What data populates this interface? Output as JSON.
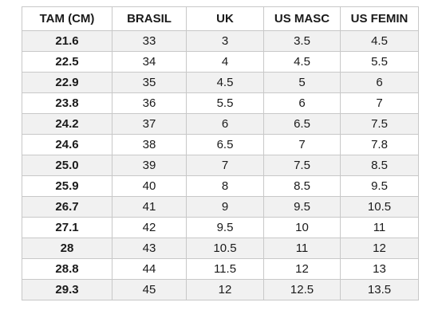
{
  "table": {
    "headers": [
      "TAM (CM)",
      "BRASIL",
      "UK",
      "US MASC",
      "US FEMIN"
    ],
    "rows": [
      [
        "21.6",
        "33",
        "3",
        "3.5",
        "4.5"
      ],
      [
        "22.5",
        "34",
        "4",
        "4.5",
        "5.5"
      ],
      [
        "22.9",
        "35",
        "4.5",
        "5",
        "6"
      ],
      [
        "23.8",
        "36",
        "5.5",
        "6",
        "7"
      ],
      [
        "24.2",
        "37",
        "6",
        "6.5",
        "7.5"
      ],
      [
        "24.6",
        "38",
        "6.5",
        "7",
        "7.8"
      ],
      [
        "25.0",
        "39",
        "7",
        "7.5",
        "8.5"
      ],
      [
        "25.9",
        "40",
        "8",
        "8.5",
        "9.5"
      ],
      [
        "26.7",
        "41",
        "9",
        "9.5",
        "10.5"
      ],
      [
        "27.1",
        "42",
        "9.5",
        "10",
        "11"
      ],
      [
        "28",
        "43",
        "10.5",
        "11",
        "12"
      ],
      [
        "28.8",
        "44",
        "11.5",
        "12",
        "13"
      ],
      [
        "29.3",
        "45",
        "12",
        "12.5",
        "13.5"
      ]
    ]
  }
}
